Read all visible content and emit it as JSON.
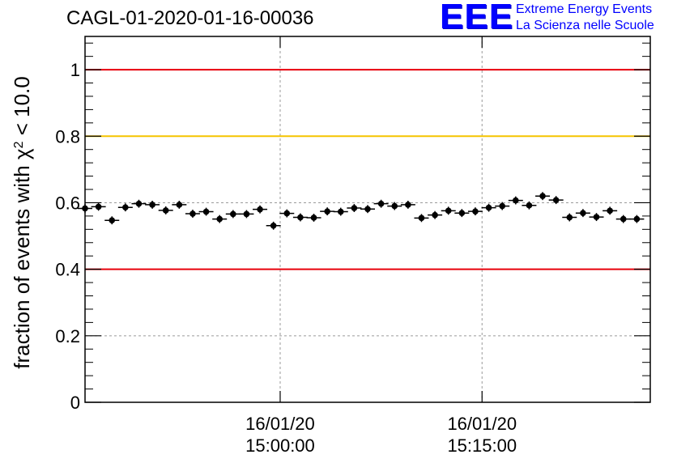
{
  "title": "CAGL-01-2020-01-16-00036",
  "logo": {
    "mark": "EEE",
    "line1": "Extreme Energy Events",
    "line2": "La Scienza nelle Scuole",
    "color": "#0000ff"
  },
  "chart_data": {
    "type": "scatter",
    "ylabel": "fraction of events with χ² < 10.0",
    "ylabel_parts": [
      "fraction of events with ",
      "χ",
      "2",
      " < 10.0"
    ],
    "ylim": [
      0,
      1.1
    ],
    "yticks": [
      {
        "value": 0,
        "label": "0"
      },
      {
        "value": 0.2,
        "label": "0.2"
      },
      {
        "value": 0.4,
        "label": "0.4"
      },
      {
        "value": 0.6,
        "label": "0.6"
      },
      {
        "value": 0.8,
        "label": "0.8"
      },
      {
        "value": 1,
        "label": "1"
      }
    ],
    "xlim": [
      1,
      43
    ],
    "xticks": [
      {
        "value": 15.5,
        "date": "16/01/20",
        "time": "15:00:00"
      },
      {
        "value": 30.5,
        "date": "16/01/20",
        "time": "15:15:00"
      }
    ],
    "grid": true,
    "reference_lines": [
      {
        "y": 1.0,
        "color": "#e8000b"
      },
      {
        "y": 0.8,
        "color": "#f5c400"
      },
      {
        "y": 0.4,
        "color": "#e8000b"
      }
    ],
    "series": [
      {
        "color": "#000000",
        "x": [
          1,
          2,
          3,
          4,
          5,
          6,
          7,
          8,
          9,
          10,
          11,
          12,
          13,
          14,
          15,
          16,
          17,
          18,
          19,
          20,
          21,
          22,
          23,
          24,
          25,
          26,
          27,
          28,
          29,
          30,
          31,
          32,
          33,
          34,
          35,
          36,
          37,
          38,
          39,
          40,
          41,
          42
        ],
        "values": [
          0.583,
          0.588,
          0.547,
          0.586,
          0.597,
          0.594,
          0.577,
          0.594,
          0.567,
          0.573,
          0.551,
          0.566,
          0.566,
          0.58,
          0.531,
          0.568,
          0.556,
          0.555,
          0.574,
          0.573,
          0.584,
          0.581,
          0.597,
          0.59,
          0.594,
          0.554,
          0.563,
          0.576,
          0.569,
          0.574,
          0.585,
          0.59,
          0.607,
          0.592,
          0.62,
          0.608,
          0.556,
          0.569,
          0.557,
          0.576,
          0.551,
          0.551
        ],
        "errors": [
          0.013,
          0.012,
          0.012,
          0.012,
          0.012,
          0.012,
          0.012,
          0.012,
          0.012,
          0.012,
          0.012,
          0.012,
          0.012,
          0.012,
          0.012,
          0.012,
          0.012,
          0.012,
          0.012,
          0.012,
          0.012,
          0.012,
          0.012,
          0.012,
          0.012,
          0.012,
          0.012,
          0.012,
          0.012,
          0.012,
          0.012,
          0.012,
          0.012,
          0.012,
          0.012,
          0.012,
          0.012,
          0.012,
          0.012,
          0.012,
          0.012,
          0.012
        ]
      }
    ]
  }
}
